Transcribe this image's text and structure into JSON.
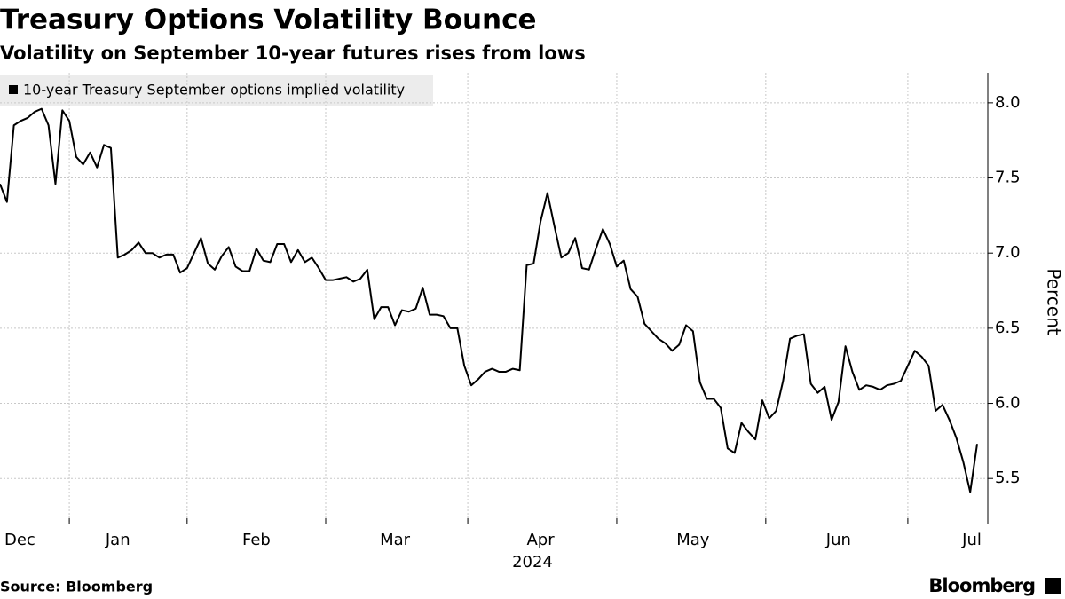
{
  "chart_data": {
    "type": "line",
    "title": "Treasury Options Volatility Bounce",
    "subtitle": "Volatility on September 10-year futures rises from lows",
    "x_year_label": "2024",
    "y_label": "Percent",
    "source": "Source: Bloomberg",
    "brand": "Bloomberg",
    "grid": true,
    "categories": [
      null,
      null,
      null,
      "Dec",
      null,
      null,
      null,
      null,
      null,
      null,
      null,
      null,
      null,
      null,
      null,
      null,
      null,
      "Jan",
      null,
      null,
      null,
      null,
      null,
      null,
      null,
      null,
      null,
      null,
      null,
      null,
      null,
      null,
      null,
      null,
      null,
      null,
      null,
      "Feb",
      null,
      null,
      null,
      null,
      null,
      null,
      null,
      null,
      null,
      null,
      null,
      null,
      null,
      null,
      null,
      null,
      null,
      null,
      null,
      "Mar",
      null,
      null,
      null,
      null,
      null,
      null,
      null,
      null,
      null,
      null,
      null,
      null,
      null,
      null,
      null,
      null,
      null,
      null,
      null,
      null,
      "Apr",
      null,
      null,
      null,
      null,
      null,
      null,
      null,
      null,
      null,
      null,
      null,
      null,
      null,
      null,
      null,
      null,
      null,
      null,
      null,
      null,
      null,
      "May",
      null,
      null,
      null,
      null,
      null,
      null,
      null,
      null,
      null,
      null,
      null,
      null,
      null,
      null,
      null,
      null,
      null,
      null,
      null,
      null,
      "Jun",
      null,
      null,
      null,
      null,
      null,
      null,
      null,
      null,
      null,
      null,
      null,
      null,
      null,
      null,
      null,
      null,
      null,
      null,
      null,
      "Jul"
    ],
    "series": [
      {
        "name": "10-year Treasury September options implied volatility",
        "color": "#000000",
        "values": [
          7.46,
          7.34,
          7.85,
          7.88,
          7.9,
          7.94,
          7.96,
          7.85,
          7.46,
          7.95,
          7.88,
          7.64,
          7.59,
          7.67,
          7.57,
          7.72,
          7.7,
          6.97,
          6.99,
          7.02,
          7.07,
          7.0,
          7.0,
          6.97,
          6.99,
          6.99,
          6.87,
          6.9,
          7.0,
          7.1,
          6.93,
          6.89,
          6.98,
          7.04,
          6.91,
          6.88,
          6.88,
          7.03,
          6.95,
          6.94,
          7.06,
          7.06,
          6.94,
          7.02,
          6.94,
          6.97,
          6.9,
          6.82,
          6.82,
          6.83,
          6.84,
          6.81,
          6.83,
          6.89,
          6.56,
          6.64,
          6.64,
          6.52,
          6.62,
          6.61,
          6.63,
          6.77,
          6.59,
          6.59,
          6.58,
          6.5,
          6.5,
          6.25,
          6.12,
          6.16,
          6.21,
          6.23,
          6.21,
          6.21,
          6.23,
          6.22,
          6.92,
          6.93,
          7.21,
          7.4,
          7.18,
          6.97,
          7.0,
          7.1,
          6.9,
          6.89,
          7.03,
          7.16,
          7.06,
          6.91,
          6.95,
          6.76,
          6.71,
          6.53,
          6.48,
          6.43,
          6.4,
          6.35,
          6.39,
          6.52,
          6.48,
          6.14,
          6.03,
          6.03,
          5.97,
          5.7,
          5.67,
          5.87,
          5.81,
          5.76,
          6.02,
          5.9,
          5.95,
          6.15,
          6.43,
          6.45,
          6.46,
          6.13,
          6.07,
          6.11,
          5.89,
          6.01,
          6.38,
          6.21,
          6.09,
          6.12,
          6.11,
          6.09,
          6.12,
          6.13,
          6.15,
          6.25,
          6.35,
          6.31,
          6.25,
          5.95,
          5.99,
          5.89,
          5.77,
          5.61,
          5.41,
          5.73
        ]
      }
    ],
    "ylim": [
      5.2,
      8.2
    ],
    "yticks": [
      5.5,
      {
        "value": 6,
        "label": "6.0"
      },
      6.5,
      {
        "value": 7,
        "label": "7.0"
      },
      7.5,
      {
        "value": 8,
        "label": "8.0"
      }
    ]
  }
}
